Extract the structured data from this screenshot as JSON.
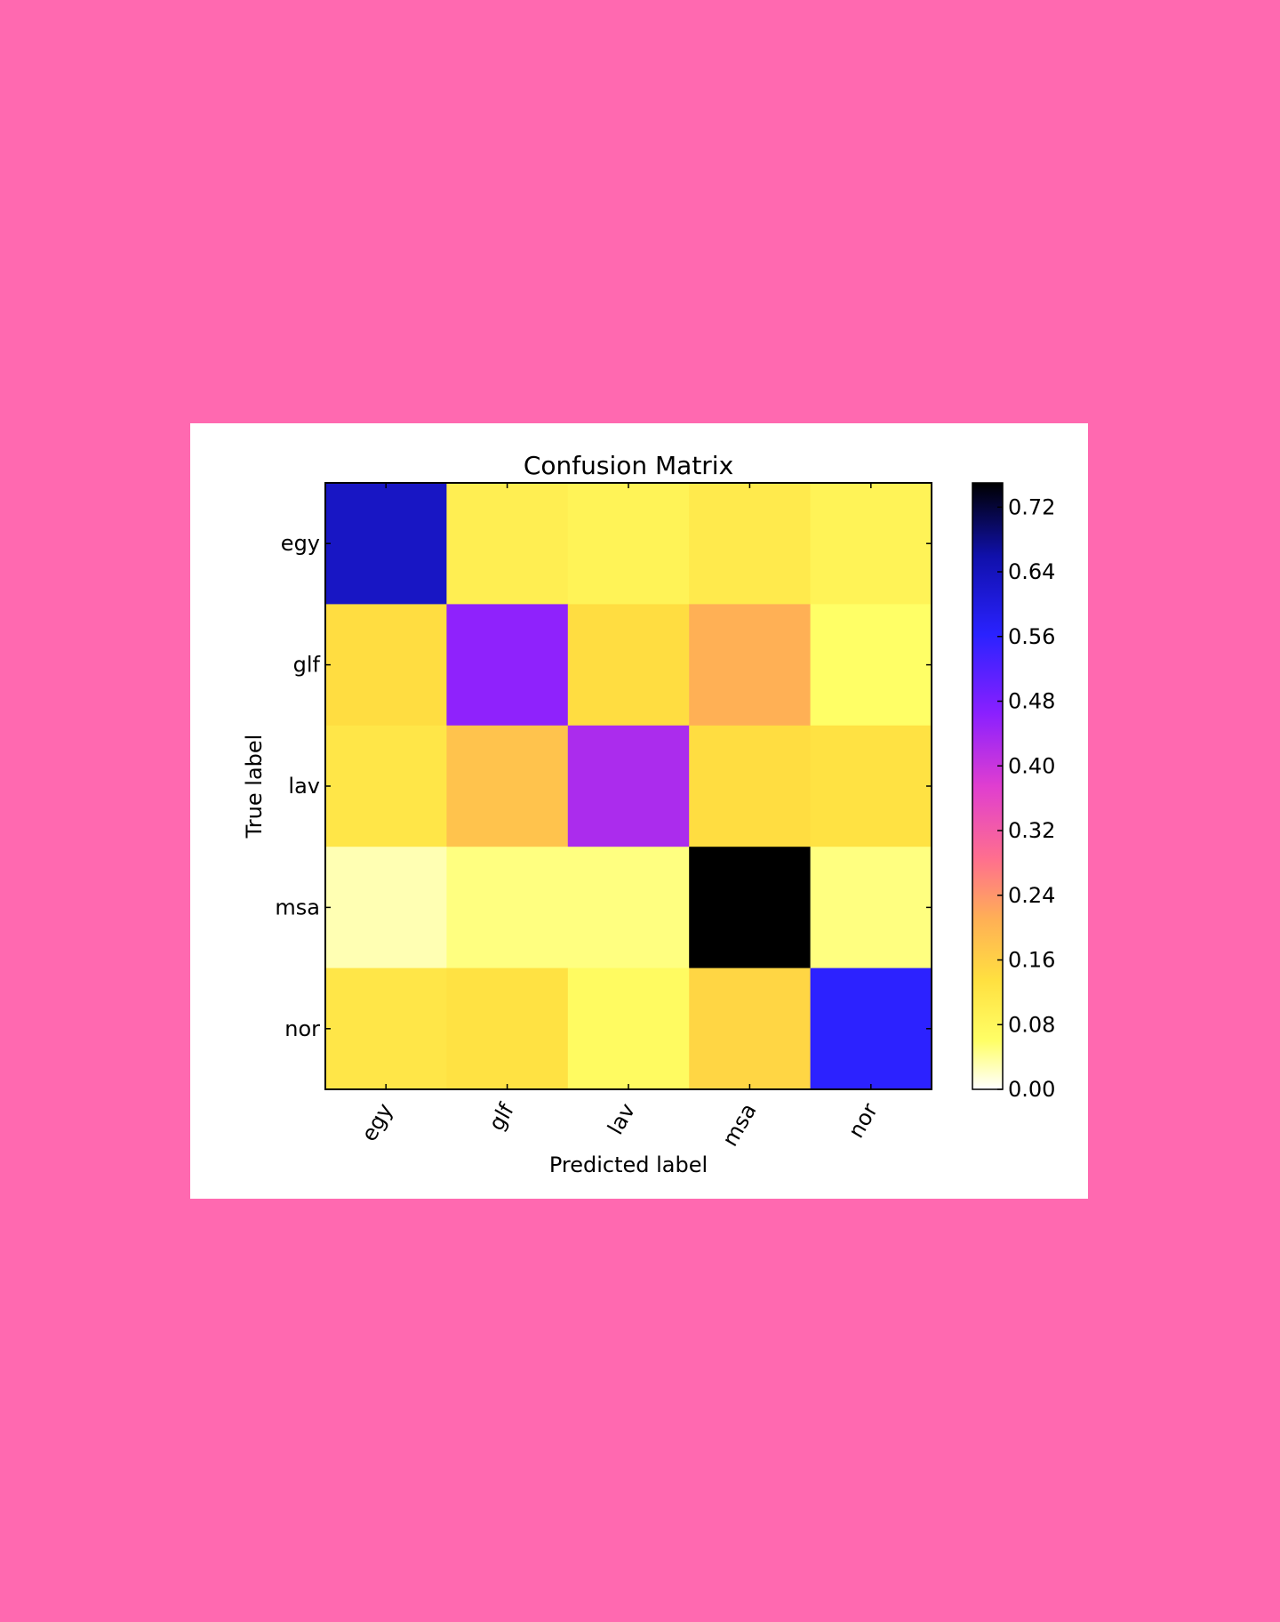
{
  "chart_data": {
    "type": "heatmap",
    "title": "Confusion Matrix",
    "xlabel": "Predicted label",
    "ylabel": "True label",
    "x_categories": [
      "egy",
      "glf",
      "lav",
      "msa",
      "nor"
    ],
    "y_categories": [
      "egy",
      "glf",
      "lav",
      "msa",
      "nor"
    ],
    "values": [
      [
        0.63,
        0.1,
        0.09,
        0.11,
        0.09
      ],
      [
        0.14,
        0.46,
        0.14,
        0.21,
        0.06
      ],
      [
        0.12,
        0.18,
        0.43,
        0.14,
        0.13
      ],
      [
        0.03,
        0.05,
        0.05,
        0.75,
        0.05
      ],
      [
        0.12,
        0.13,
        0.07,
        0.15,
        0.56
      ]
    ],
    "colorbar": {
      "range": [
        0,
        0.75
      ],
      "ticks": [
        "0.00",
        "0.08",
        "0.16",
        "0.24",
        "0.32",
        "0.40",
        "0.48",
        "0.56",
        "0.64",
        "0.72"
      ],
      "colormap": "gnuplot2_r"
    }
  }
}
